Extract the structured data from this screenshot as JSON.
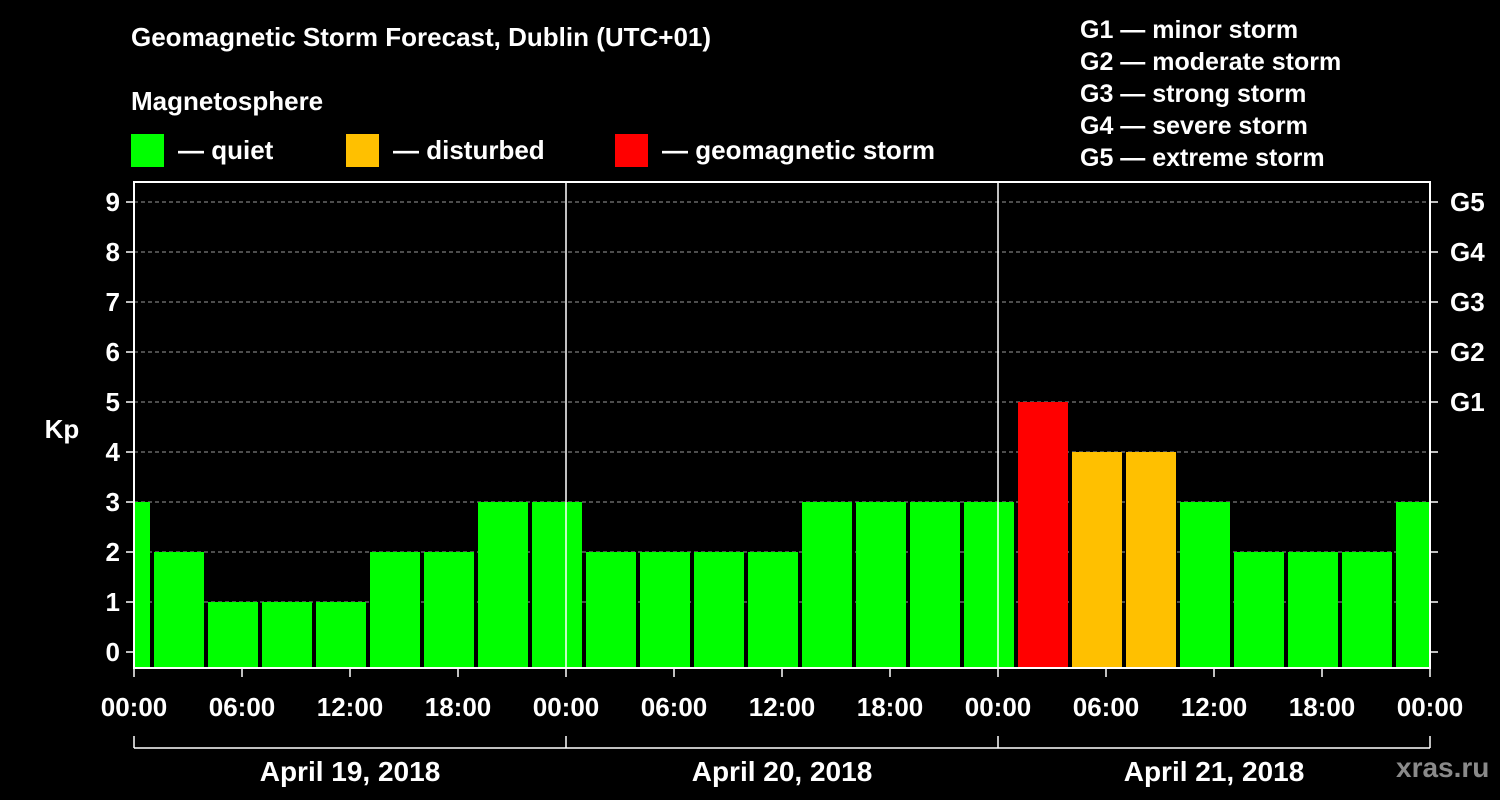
{
  "title": "Geomagnetic Storm Forecast, Dublin (UTC+01)",
  "subtitle": "Magnetosphere",
  "legend": [
    {
      "label": "— quiet",
      "color": "#00ff00"
    },
    {
      "label": "— disturbed",
      "color": "#ffc000"
    },
    {
      "label": "— geomagnetic storm",
      "color": "#ff0000"
    }
  ],
  "storm_scale": [
    "G1 — minor storm",
    "G2 — moderate storm",
    "G3 — strong storm",
    "G4 — severe storm",
    "G5 — extreme storm"
  ],
  "watermark": "xras.ru",
  "colors": {
    "quiet": "#00ff00",
    "disturbed": "#ffc000",
    "storm": "#ff0000",
    "grid": "#9a9a9a",
    "axis": "#ffffff",
    "background": "#000000"
  },
  "chart_data": {
    "type": "bar",
    "title": "Geomagnetic Storm Forecast, Dublin (UTC+01)",
    "ylabel": "Kp",
    "ylim": [
      0,
      9
    ],
    "yticks": [
      "0",
      "1",
      "2",
      "3",
      "4",
      "5",
      "6",
      "7",
      "8",
      "9"
    ],
    "right_axis_labels": [
      {
        "kp": 5,
        "label": "G1"
      },
      {
        "kp": 6,
        "label": "G2"
      },
      {
        "kp": 7,
        "label": "G3"
      },
      {
        "kp": 8,
        "label": "G4"
      },
      {
        "kp": 9,
        "label": "G5"
      }
    ],
    "x_range_hours": [
      0,
      72
    ],
    "xticks": [
      "00:00",
      "06:00",
      "12:00",
      "18:00",
      "00:00",
      "06:00",
      "12:00",
      "18:00",
      "00:00",
      "06:00",
      "12:00",
      "18:00",
      "00:00"
    ],
    "days": [
      "April 19, 2018",
      "April 20, 2018",
      "April 21, 2018"
    ],
    "day_boundaries_hours": [
      24,
      48
    ],
    "grid_kp_levels": [
      5,
      6,
      7,
      8,
      9
    ],
    "bars": [
      {
        "start": 0,
        "end": 1,
        "kp": 3,
        "level": "quiet"
      },
      {
        "start": 1,
        "end": 4,
        "kp": 2,
        "level": "quiet"
      },
      {
        "start": 4,
        "end": 7,
        "kp": 1,
        "level": "quiet"
      },
      {
        "start": 7,
        "end": 10,
        "kp": 1,
        "level": "quiet"
      },
      {
        "start": 10,
        "end": 13,
        "kp": 1,
        "level": "quiet"
      },
      {
        "start": 13,
        "end": 16,
        "kp": 2,
        "level": "quiet"
      },
      {
        "start": 16,
        "end": 19,
        "kp": 2,
        "level": "quiet"
      },
      {
        "start": 19,
        "end": 22,
        "kp": 3,
        "level": "quiet"
      },
      {
        "start": 22,
        "end": 25,
        "kp": 3,
        "level": "quiet"
      },
      {
        "start": 25,
        "end": 28,
        "kp": 2,
        "level": "quiet"
      },
      {
        "start": 28,
        "end": 31,
        "kp": 2,
        "level": "quiet"
      },
      {
        "start": 31,
        "end": 34,
        "kp": 2,
        "level": "quiet"
      },
      {
        "start": 34,
        "end": 37,
        "kp": 2,
        "level": "quiet"
      },
      {
        "start": 37,
        "end": 40,
        "kp": 3,
        "level": "quiet"
      },
      {
        "start": 40,
        "end": 43,
        "kp": 3,
        "level": "quiet"
      },
      {
        "start": 43,
        "end": 46,
        "kp": 3,
        "level": "quiet"
      },
      {
        "start": 46,
        "end": 49,
        "kp": 3,
        "level": "quiet"
      },
      {
        "start": 49,
        "end": 52,
        "kp": 5,
        "level": "storm"
      },
      {
        "start": 52,
        "end": 55,
        "kp": 4,
        "level": "disturbed"
      },
      {
        "start": 55,
        "end": 58,
        "kp": 4,
        "level": "disturbed"
      },
      {
        "start": 58,
        "end": 61,
        "kp": 3,
        "level": "quiet"
      },
      {
        "start": 61,
        "end": 64,
        "kp": 2,
        "level": "quiet"
      },
      {
        "start": 64,
        "end": 67,
        "kp": 2,
        "level": "quiet"
      },
      {
        "start": 67,
        "end": 70,
        "kp": 2,
        "level": "quiet"
      },
      {
        "start": 70,
        "end": 72,
        "kp": 3,
        "level": "quiet"
      }
    ]
  }
}
